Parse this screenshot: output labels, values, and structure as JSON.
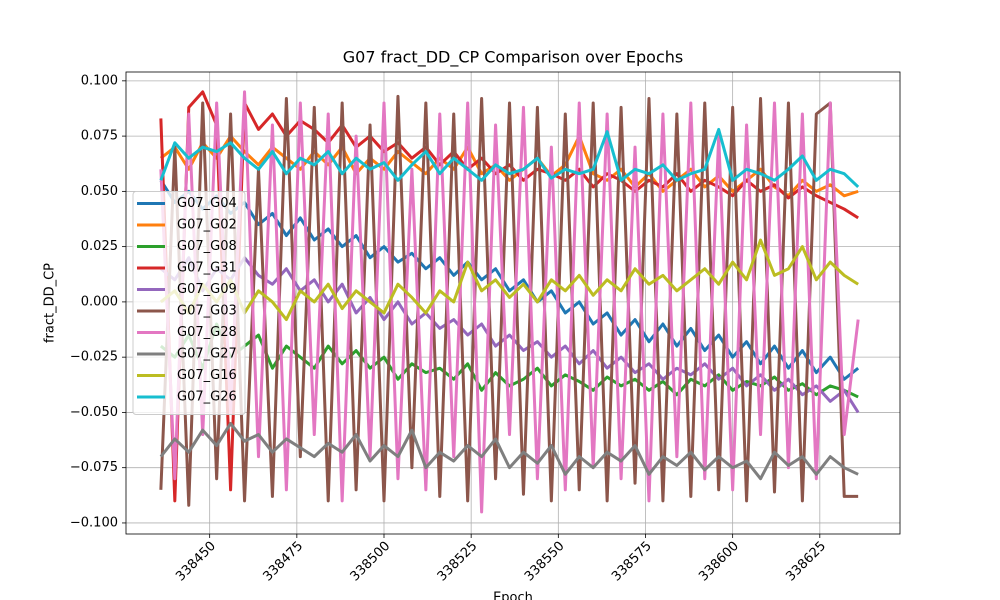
{
  "chart_data": {
    "type": "line",
    "title": "G07 fract_DD_CP Comparison over Epochs",
    "xlabel": "Epoch",
    "ylabel": "fract_DD_CP",
    "grid": true,
    "legend": "center left",
    "xlim": [
      338426,
      338648
    ],
    "ylim": [
      -0.105,
      0.104
    ],
    "xticks": [
      338450,
      338475,
      338500,
      338525,
      338550,
      338575,
      338600,
      338625
    ],
    "yticks": [
      {
        "value": 0.1,
        "label": "0.100"
      },
      {
        "value": 0.075,
        "label": "0.075"
      },
      {
        "value": 0.05,
        "label": "0.050"
      },
      {
        "value": 0.025,
        "label": "0.025"
      },
      {
        "value": 0,
        "label": "0.000"
      },
      {
        "value": -0.025,
        "label": "−0.025"
      },
      {
        "value": -0.05,
        "label": "−0.050"
      },
      {
        "value": -0.075,
        "label": "−0.075"
      },
      {
        "value": -0.1,
        "label": "−0.100"
      }
    ],
    "x": [
      338436,
      338440,
      338444,
      338448,
      338452,
      338456,
      338460,
      338464,
      338468,
      338472,
      338476,
      338480,
      338484,
      338488,
      338492,
      338496,
      338500,
      338504,
      338508,
      338512,
      338516,
      338520,
      338524,
      338528,
      338532,
      338536,
      338540,
      338544,
      338548,
      338552,
      338556,
      338560,
      338564,
      338568,
      338572,
      338576,
      338580,
      338584,
      338588,
      338592,
      338596,
      338600,
      338604,
      338608,
      338612,
      338616,
      338620,
      338624,
      338628,
      338632,
      338636
    ],
    "series": [
      {
        "name": "G07_G04",
        "color": "#1f77b4",
        "values": [
          0.055,
          0.045,
          0.05,
          0.042,
          0.048,
          0.04,
          0.045,
          0.035,
          0.04,
          0.03,
          0.038,
          0.028,
          0.033,
          0.025,
          0.03,
          0.02,
          0.025,
          0.018,
          0.022,
          0.015,
          0.02,
          0.012,
          0.018,
          0.01,
          0.015,
          0.005,
          0.01,
          0.0,
          0.005,
          -0.005,
          0.0,
          -0.01,
          -0.005,
          -0.015,
          -0.008,
          -0.018,
          -0.01,
          -0.02,
          -0.012,
          -0.022,
          -0.015,
          -0.025,
          -0.018,
          -0.028,
          -0.02,
          -0.03,
          -0.022,
          -0.032,
          -0.025,
          -0.035,
          -0.03
        ]
      },
      {
        "name": "G07_G02",
        "color": "#ff7f0e",
        "values": [
          0.065,
          0.07,
          0.06,
          0.072,
          0.065,
          0.075,
          0.068,
          0.062,
          0.07,
          0.065,
          0.06,
          0.068,
          0.062,
          0.07,
          0.058,
          0.065,
          0.06,
          0.068,
          0.063,
          0.058,
          0.065,
          0.06,
          0.07,
          0.058,
          0.062,
          0.055,
          0.06,
          0.065,
          0.057,
          0.062,
          0.075,
          0.058,
          0.055,
          0.06,
          0.052,
          0.058,
          0.05,
          0.055,
          0.06,
          0.052,
          0.057,
          0.05,
          0.055,
          0.06,
          0.052,
          0.048,
          0.055,
          0.05,
          0.053,
          0.048,
          0.05
        ]
      },
      {
        "name": "G07_G08",
        "color": "#2ca02c",
        "values": [
          -0.02,
          -0.025,
          -0.015,
          -0.03,
          -0.01,
          -0.025,
          -0.02,
          -0.015,
          -0.03,
          -0.02,
          -0.025,
          -0.03,
          -0.02,
          -0.028,
          -0.022,
          -0.03,
          -0.025,
          -0.035,
          -0.028,
          -0.032,
          -0.03,
          -0.035,
          -0.028,
          -0.04,
          -0.032,
          -0.038,
          -0.035,
          -0.03,
          -0.038,
          -0.033,
          -0.036,
          -0.04,
          -0.034,
          -0.038,
          -0.035,
          -0.04,
          -0.036,
          -0.042,
          -0.035,
          -0.038,
          -0.033,
          -0.04,
          -0.036,
          -0.038,
          -0.034,
          -0.04,
          -0.037,
          -0.042,
          -0.038,
          -0.04,
          -0.043
        ]
      },
      {
        "name": "G07_G31",
        "color": "#d62728",
        "values": [
          0.083,
          -0.09,
          0.088,
          0.095,
          0.08,
          -0.085,
          0.09,
          0.078,
          0.085,
          0.075,
          0.082,
          0.078,
          0.072,
          0.08,
          0.07,
          0.075,
          0.068,
          0.072,
          0.065,
          0.07,
          0.062,
          0.068,
          0.06,
          0.065,
          0.058,
          0.062,
          0.055,
          0.06,
          0.058,
          0.055,
          0.06,
          0.052,
          0.058,
          0.055,
          0.05,
          0.055,
          0.052,
          0.058,
          0.05,
          0.055,
          0.052,
          0.048,
          0.055,
          0.05,
          0.053,
          0.047,
          0.052,
          0.048,
          0.045,
          0.042,
          0.038
        ]
      },
      {
        "name": "G07_G09",
        "color": "#9467bd",
        "values": [
          0.015,
          0.01,
          0.02,
          0.005,
          0.015,
          0.01,
          0.02,
          0.012,
          0.008,
          0.015,
          0.005,
          0.01,
          0.0,
          0.008,
          -0.005,
          0.002,
          -0.008,
          0.0,
          -0.01,
          -0.005,
          -0.012,
          -0.008,
          -0.015,
          -0.01,
          -0.02,
          -0.015,
          -0.022,
          -0.018,
          -0.025,
          -0.02,
          -0.028,
          -0.022,
          -0.03,
          -0.025,
          -0.032,
          -0.028,
          -0.035,
          -0.03,
          -0.033,
          -0.028,
          -0.035,
          -0.03,
          -0.038,
          -0.033,
          -0.04,
          -0.035,
          -0.042,
          -0.038,
          -0.045,
          -0.04,
          -0.05
        ]
      },
      {
        "name": "G07_G03",
        "color": "#8c564b",
        "values": [
          -0.085,
          0.07,
          -0.092,
          0.09,
          -0.08,
          0.085,
          -0.09,
          0.06,
          -0.088,
          0.092,
          -0.07,
          0.088,
          -0.09,
          0.09,
          -0.085,
          0.08,
          -0.09,
          0.093,
          -0.075,
          0.09,
          -0.088,
          0.085,
          -0.09,
          0.092,
          -0.08,
          0.09,
          -0.087,
          0.088,
          -0.09,
          0.085,
          -0.085,
          0.09,
          -0.09,
          0.088,
          -0.082,
          0.092,
          -0.09,
          0.085,
          -0.088,
          0.09,
          -0.085,
          0.088,
          -0.09,
          0.092,
          -0.086,
          0.09,
          -0.09,
          0.085,
          0.09,
          -0.088,
          -0.088
        ]
      },
      {
        "name": "G07_G28",
        "color": "#e377c2",
        "values": [
          0.06,
          -0.08,
          0.085,
          -0.06,
          0.09,
          -0.05,
          0.095,
          -0.07,
          0.08,
          -0.085,
          0.09,
          -0.06,
          0.085,
          -0.09,
          0.075,
          -0.07,
          0.09,
          -0.08,
          0.06,
          -0.085,
          0.085,
          -0.07,
          0.09,
          -0.095,
          0.08,
          -0.06,
          0.088,
          -0.08,
          0.07,
          -0.085,
          0.09,
          -0.075,
          0.085,
          -0.08,
          0.07,
          -0.09,
          0.085,
          -0.07,
          0.09,
          -0.08,
          0.075,
          -0.085,
          0.08,
          -0.06,
          0.09,
          -0.075,
          0.085,
          -0.08,
          0.09,
          -0.06,
          -0.008
        ]
      },
      {
        "name": "G07_G27",
        "color": "#7f7f7f",
        "values": [
          -0.07,
          -0.062,
          -0.068,
          -0.058,
          -0.065,
          -0.055,
          -0.063,
          -0.06,
          -0.068,
          -0.062,
          -0.066,
          -0.07,
          -0.064,
          -0.068,
          -0.06,
          -0.072,
          -0.065,
          -0.07,
          -0.058,
          -0.075,
          -0.068,
          -0.072,
          -0.065,
          -0.07,
          -0.062,
          -0.075,
          -0.068,
          -0.073,
          -0.065,
          -0.078,
          -0.07,
          -0.075,
          -0.068,
          -0.072,
          -0.065,
          -0.078,
          -0.07,
          -0.074,
          -0.068,
          -0.076,
          -0.07,
          -0.075,
          -0.072,
          -0.08,
          -0.068,
          -0.074,
          -0.07,
          -0.078,
          -0.07,
          -0.075,
          -0.078
        ]
      },
      {
        "name": "G07_G16",
        "color": "#bcbd22",
        "values": [
          0.0,
          0.005,
          -0.005,
          0.008,
          0.0,
          0.01,
          -0.005,
          0.005,
          0.0,
          -0.008,
          0.005,
          0.0,
          0.008,
          -0.003,
          0.005,
          0.0,
          -0.005,
          0.008,
          0.002,
          -0.005,
          0.005,
          0.0,
          0.018,
          0.005,
          0.01,
          0.002,
          0.008,
          0.0,
          0.01,
          0.005,
          0.012,
          0.003,
          0.01,
          0.005,
          0.015,
          0.008,
          0.012,
          0.005,
          0.01,
          0.015,
          0.008,
          0.018,
          0.01,
          0.028,
          0.012,
          0.015,
          0.025,
          0.01,
          0.018,
          0.012,
          0.008
        ]
      },
      {
        "name": "G07_G26",
        "color": "#17becf",
        "values": [
          0.055,
          0.072,
          0.065,
          0.07,
          0.068,
          0.072,
          0.065,
          0.06,
          0.068,
          0.058,
          0.065,
          0.062,
          0.068,
          0.058,
          0.065,
          0.06,
          0.063,
          0.055,
          0.062,
          0.068,
          0.058,
          0.065,
          0.06,
          0.055,
          0.062,
          0.058,
          0.06,
          0.065,
          0.056,
          0.06,
          0.058,
          0.06,
          0.077,
          0.055,
          0.06,
          0.058,
          0.062,
          0.055,
          0.058,
          0.06,
          0.078,
          0.055,
          0.06,
          0.058,
          0.055,
          0.06,
          0.066,
          0.055,
          0.06,
          0.058,
          0.052
        ]
      }
    ]
  }
}
